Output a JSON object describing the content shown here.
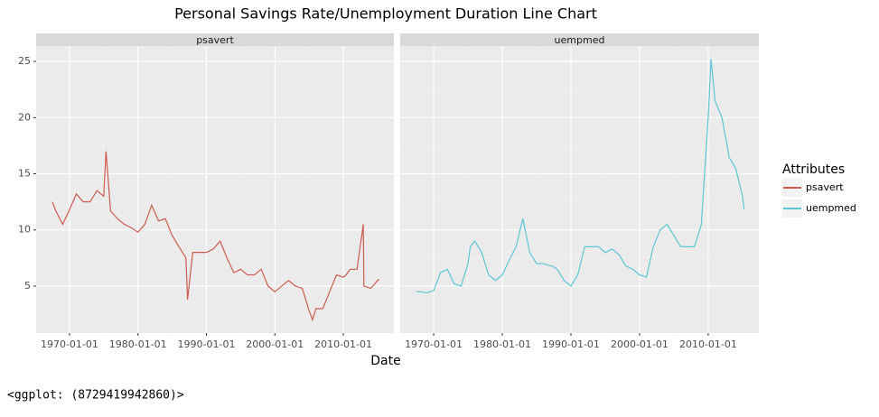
{
  "chart_data": {
    "type": "line",
    "title": "Personal Savings Rate/Unemployment Duration Line Chart",
    "x_label": "Date",
    "legend_title": "Attributes",
    "facet": true,
    "grid": true,
    "x": [
      "1967-07-01",
      "1968-01-01",
      "1969-01-01",
      "1970-01-01",
      "1971-01-01",
      "1972-01-01",
      "1973-01-01",
      "1974-01-01",
      "1975-01-01",
      "1975-05-01",
      "1976-01-01",
      "1977-01-01",
      "1978-01-01",
      "1979-01-01",
      "1980-01-01",
      "1981-01-01",
      "1982-01-01",
      "1983-01-01",
      "1984-01-01",
      "1985-01-01",
      "1986-01-01",
      "1987-01-01",
      "1987-04-01",
      "1988-01-01",
      "1989-01-01",
      "1990-01-01",
      "1991-01-01",
      "1992-01-01",
      "1993-01-01",
      "1994-01-01",
      "1995-01-01",
      "1996-01-01",
      "1997-01-01",
      "1998-01-01",
      "1999-01-01",
      "2000-01-01",
      "2001-01-01",
      "2002-01-01",
      "2003-01-01",
      "2004-01-01",
      "2005-01-01",
      "2005-07-01",
      "2006-01-01",
      "2007-01-01",
      "2008-01-01",
      "2009-01-01",
      "2010-01-01",
      "2010-06-01",
      "2011-01-01",
      "2012-01-01",
      "2012-12-01",
      "2013-01-01",
      "2014-01-01",
      "2015-01-01",
      "2015-04-01"
    ],
    "series": [
      {
        "name": "psavert",
        "color": "#cd5c4f",
        "values": [
          12.5,
          11.7,
          10.5,
          11.8,
          13.2,
          12.5,
          12.5,
          13.5,
          13.0,
          17.0,
          11.7,
          11.0,
          10.5,
          10.2,
          9.8,
          10.5,
          12.2,
          10.8,
          11.0,
          9.5,
          8.5,
          7.5,
          3.8,
          8.0,
          8.0,
          8.0,
          8.3,
          9.0,
          7.5,
          6.2,
          6.5,
          6.0,
          6.0,
          6.5,
          5.0,
          4.5,
          5.0,
          5.5,
          5.0,
          4.8,
          2.8,
          2.0,
          3.0,
          3.0,
          4.5,
          6.0,
          5.8,
          6.0,
          6.5,
          6.5,
          10.5,
          5.0,
          4.8,
          5.5,
          5.6
        ]
      },
      {
        "name": "uempmed",
        "color": "#5bc6d4",
        "values": [
          4.5,
          4.5,
          4.4,
          4.6,
          6.2,
          6.5,
          5.2,
          5.0,
          7.0,
          8.5,
          9.0,
          8.0,
          6.0,
          5.5,
          6.0,
          7.3,
          8.5,
          11.0,
          8.0,
          7.0,
          7.0,
          6.8,
          6.8,
          6.5,
          5.5,
          5.0,
          6.0,
          8.5,
          8.5,
          8.5,
          8.0,
          8.3,
          7.8,
          6.8,
          6.5,
          6.0,
          5.8,
          8.5,
          10.0,
          10.5,
          9.5,
          9.0,
          8.5,
          8.5,
          8.5,
          10.5,
          20.0,
          25.2,
          21.5,
          20.0,
          17.0,
          16.5,
          15.5,
          13.0,
          11.8
        ]
      }
    ],
    "xlim": [
      "1965-02-15",
      "2017-05-20"
    ],
    "xticks": [
      "1970-01-01",
      "1980-01-01",
      "1990-01-01",
      "2000-01-01",
      "2010-01-01"
    ],
    "ylim": [
      0.82,
      26.37
    ],
    "yticks": [
      5,
      10,
      15,
      20,
      25
    ]
  },
  "footer": "<ggplot: (8729419942860)>"
}
